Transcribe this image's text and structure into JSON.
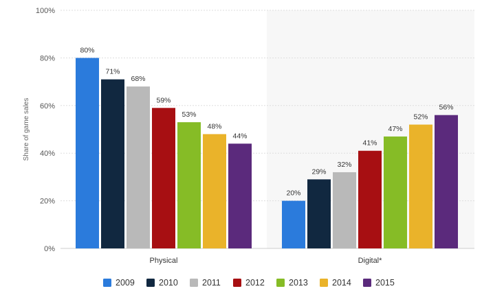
{
  "chart_data": {
    "type": "bar",
    "categories": [
      "Physical",
      "Digital*"
    ],
    "series": [
      {
        "name": "2009",
        "values": [
          80,
          20
        ],
        "color": "#2b7bdc"
      },
      {
        "name": "2010",
        "values": [
          71,
          29
        ],
        "color": "#112840"
      },
      {
        "name": "2011",
        "values": [
          68,
          32
        ],
        "color": "#b9b9b9"
      },
      {
        "name": "2012",
        "values": [
          59,
          41
        ],
        "color": "#a70f12"
      },
      {
        "name": "2013",
        "values": [
          53,
          47
        ],
        "color": "#86bc26"
      },
      {
        "name": "2014",
        "values": [
          48,
          52
        ],
        "color": "#eab32a"
      },
      {
        "name": "2015",
        "values": [
          44,
          56
        ],
        "color": "#5b2a7c"
      }
    ],
    "ylabel": "Share of game sales",
    "xlabel": "",
    "ylim": [
      0,
      100
    ],
    "yticks": [
      0,
      20,
      40,
      60,
      80,
      100
    ],
    "value_suffix": "%",
    "grid": true,
    "legend_position": "bottom",
    "highlighted_category_background": "#f7f7f7"
  }
}
